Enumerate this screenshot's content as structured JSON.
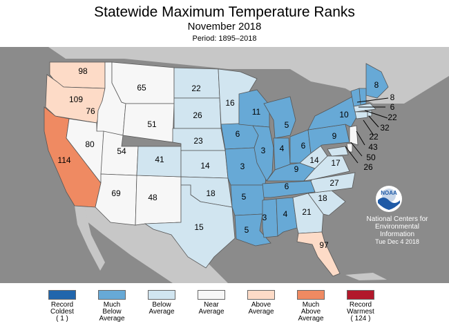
{
  "header": {
    "title": "Statewide Maximum Temperature Ranks",
    "subtitle": "November 2018",
    "period": "Period: 1895–2018"
  },
  "colors": {
    "record_coldest": "#2166ac",
    "much_below": "#67a9d6",
    "below": "#d1e5f0",
    "near": "#f7f7f7",
    "above": "#fddbc7",
    "much_above": "#ef8a62",
    "record_warmest": "#b2182b",
    "ocean": "#8b8b8b",
    "land_other": "#c7c7c7"
  },
  "states": [
    {
      "name": "WA",
      "rank": "98",
      "category": "above"
    },
    {
      "name": "OR",
      "rank": "109",
      "category": "above"
    },
    {
      "name": "CA",
      "rank": "114",
      "category": "much_above"
    },
    {
      "name": "ID",
      "rank": "76",
      "category": "near"
    },
    {
      "name": "NV",
      "rank": "80",
      "category": "near"
    },
    {
      "name": "MT",
      "rank": "65",
      "category": "near"
    },
    {
      "name": "WY",
      "rank": "51",
      "category": "near"
    },
    {
      "name": "UT",
      "rank": "54",
      "category": "near"
    },
    {
      "name": "AZ",
      "rank": "69",
      "category": "near"
    },
    {
      "name": "NM",
      "rank": "48",
      "category": "near"
    },
    {
      "name": "CO",
      "rank": "41",
      "category": "below"
    },
    {
      "name": "ND",
      "rank": "22",
      "category": "below"
    },
    {
      "name": "SD",
      "rank": "26",
      "category": "below"
    },
    {
      "name": "NE",
      "rank": "23",
      "category": "below"
    },
    {
      "name": "KS",
      "rank": "14",
      "category": "below"
    },
    {
      "name": "OK",
      "rank": "18",
      "category": "below"
    },
    {
      "name": "TX",
      "rank": "15",
      "category": "below"
    },
    {
      "name": "MN",
      "rank": "16",
      "category": "below"
    },
    {
      "name": "IA",
      "rank": "6",
      "category": "much_below"
    },
    {
      "name": "MO",
      "rank": "3",
      "category": "much_below"
    },
    {
      "name": "AR",
      "rank": "5",
      "category": "much_below"
    },
    {
      "name": "LA",
      "rank": "5",
      "category": "much_below"
    },
    {
      "name": "WI",
      "rank": "11",
      "category": "much_below"
    },
    {
      "name": "IL",
      "rank": "3",
      "category": "much_below"
    },
    {
      "name": "MI",
      "rank": "5",
      "category": "much_below"
    },
    {
      "name": "IN",
      "rank": "4",
      "category": "much_below"
    },
    {
      "name": "OH",
      "rank": "6",
      "category": "much_below"
    },
    {
      "name": "KY",
      "rank": "9",
      "category": "much_below"
    },
    {
      "name": "TN",
      "rank": "6",
      "category": "much_below"
    },
    {
      "name": "MS",
      "rank": "3",
      "category": "much_below"
    },
    {
      "name": "AL",
      "rank": "4",
      "category": "much_below"
    },
    {
      "name": "GA",
      "rank": "21",
      "category": "below"
    },
    {
      "name": "FL",
      "rank": "97",
      "category": "above"
    },
    {
      "name": "SC",
      "rank": "18",
      "category": "below"
    },
    {
      "name": "NC",
      "rank": "27",
      "category": "below"
    },
    {
      "name": "VA",
      "rank": "17",
      "category": "below"
    },
    {
      "name": "WV",
      "rank": "14",
      "category": "below"
    },
    {
      "name": "PA",
      "rank": "9",
      "category": "much_below"
    },
    {
      "name": "NY",
      "rank": "10",
      "category": "much_below"
    },
    {
      "name": "ME",
      "rank": "8",
      "category": "much_below"
    },
    {
      "name": "NH",
      "rank": "8",
      "category": "much_below"
    },
    {
      "name": "VT",
      "rank": "6",
      "category": "much_below"
    },
    {
      "name": "MA",
      "rank": "22",
      "category": "below"
    },
    {
      "name": "RI",
      "rank": "32",
      "category": "below"
    },
    {
      "name": "CT",
      "rank": "22",
      "category": "below"
    },
    {
      "name": "NJ",
      "rank": "43",
      "category": "near"
    },
    {
      "name": "DE",
      "rank": "50",
      "category": "near"
    },
    {
      "name": "MD",
      "rank": "26",
      "category": "below"
    }
  ],
  "credit": {
    "logo_text": "NOAA",
    "line1": "National Centers for",
    "line2": "Environmental",
    "line3": "Information",
    "date": "Tue Dec  4 2018"
  },
  "legend": [
    {
      "line1": "Record",
      "line2": "Coldest",
      "line3": "( 1 )",
      "color": "#2166ac"
    },
    {
      "line1": "Much",
      "line2": "Below",
      "line3": "Average",
      "color": "#67a9d6"
    },
    {
      "line1": "Below",
      "line2": "Average",
      "line3": "",
      "color": "#d1e5f0"
    },
    {
      "line1": "Near",
      "line2": "Average",
      "line3": "",
      "color": "#f7f7f7"
    },
    {
      "line1": "Above",
      "line2": "Average",
      "line3": "",
      "color": "#fddbc7"
    },
    {
      "line1": "Much",
      "line2": "Above",
      "line3": "Average",
      "color": "#ef8a62"
    },
    {
      "line1": "Record",
      "line2": "Warmest",
      "line3": "( 124 )",
      "color": "#b2182b"
    }
  ]
}
